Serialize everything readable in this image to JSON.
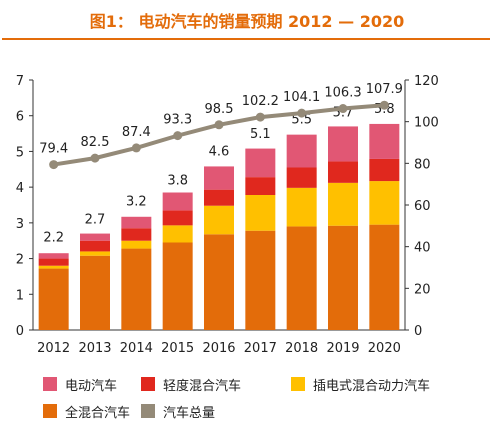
{
  "title": "图1： 电动汽车的销量预期 2012 — 2020",
  "chart_data": {
    "type": "bar",
    "stacked": true,
    "categories": [
      "2012",
      "2013",
      "2014",
      "2015",
      "2016",
      "2017",
      "2018",
      "2019",
      "2020"
    ],
    "series": [
      {
        "name": "全混合汽车",
        "color": "#e36c0a",
        "axis": "left",
        "values": [
          1.72,
          2.08,
          2.28,
          2.45,
          2.68,
          2.78,
          2.9,
          2.92,
          2.95
        ]
      },
      {
        "name": "插电式混合动力汽车",
        "color": "#ffc000",
        "axis": "left",
        "values": [
          0.08,
          0.12,
          0.22,
          0.48,
          0.8,
          1.0,
          1.08,
          1.2,
          1.22
        ]
      },
      {
        "name": "轻度混合汽车",
        "color": "#e0281e",
        "axis": "left",
        "values": [
          0.2,
          0.3,
          0.35,
          0.42,
          0.45,
          0.5,
          0.57,
          0.6,
          0.62
        ]
      },
      {
        "name": "电动汽车",
        "color": "#e15774",
        "axis": "left",
        "values": [
          0.15,
          0.2,
          0.32,
          0.5,
          0.65,
          0.8,
          0.92,
          0.98,
          0.98
        ]
      }
    ],
    "totals": [
      2.2,
      2.7,
      3.2,
      3.8,
      4.6,
      5.1,
      5.5,
      5.7,
      5.8
    ],
    "line": {
      "name": "汽车总量",
      "color": "#948a78",
      "axis": "right",
      "values": [
        79.4,
        82.5,
        87.4,
        93.3,
        98.5,
        102.2,
        104.1,
        106.3,
        107.9
      ]
    },
    "ylim_left": [
      0,
      7
    ],
    "yticks_left": [
      0,
      1,
      2,
      3,
      4,
      5,
      6,
      7
    ],
    "ylim_right": [
      0,
      120
    ],
    "yticks_right": [
      0,
      20,
      40,
      60,
      80,
      100,
      120
    ],
    "xlabel": "",
    "ylabel": "",
    "legend_position": "bottom",
    "grid": false
  },
  "legend": {
    "rows": [
      [
        {
          "label": "电动汽车",
          "color": "#e15774"
        },
        {
          "label": "轻度混合汽车",
          "color": "#e0281e"
        },
        {
          "label": "插电式混合动力汽车",
          "color": "#ffc000"
        }
      ],
      [
        {
          "label": "全混合汽车",
          "color": "#e36c0a"
        },
        {
          "label": "汽车总量",
          "color": "#948a78"
        }
      ]
    ]
  }
}
